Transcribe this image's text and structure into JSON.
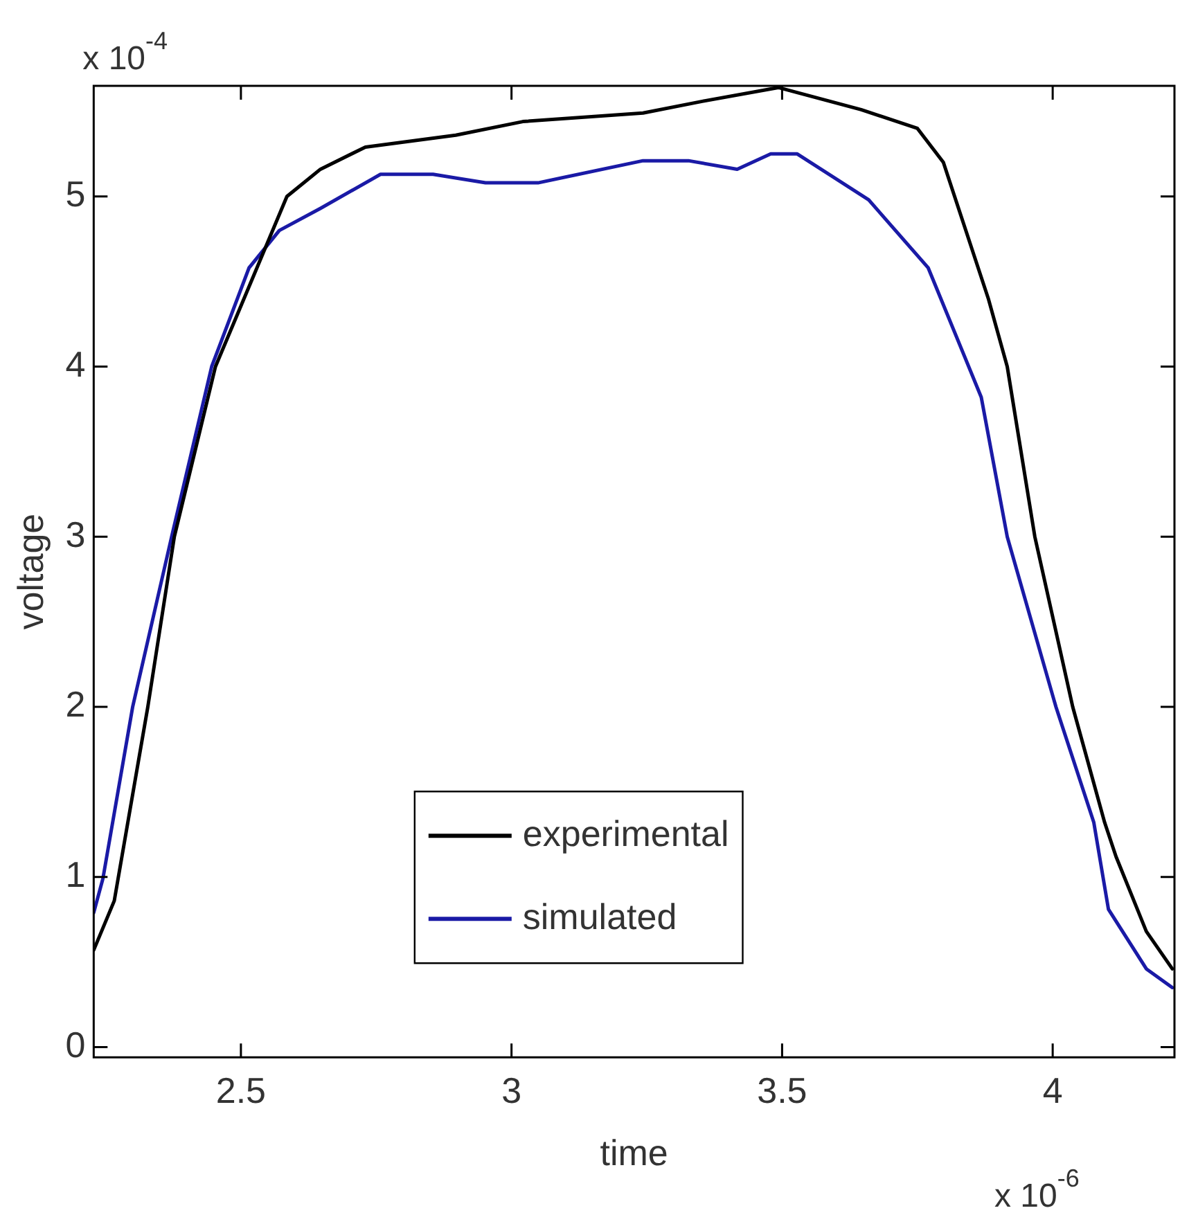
{
  "chart_data": {
    "type": "line",
    "xlabel": "time",
    "ylabel": "voltage",
    "xlim": [
      2.228,
      4.225
    ],
    "xticks": [
      {
        "value": 2.5,
        "label": "2.5"
      },
      3,
      {
        "value": 3.5,
        "label": "3.5"
      },
      4
    ],
    "ylim": [
      -0.06,
      5.65
    ],
    "yticks": [
      0,
      1,
      2,
      3,
      4,
      5
    ],
    "grid": false,
    "legend": "bottom",
    "marker": "none",
    "line_style": "solid",
    "annotations": [
      "x 10$^{-4}$",
      "x 10$^{-6}$"
    ],
    "series": [
      {
        "name": "experimental",
        "color": "#000000",
        "x": [
          2.228,
          2.266,
          2.328,
          2.377,
          2.453,
          2.585,
          2.647,
          2.73,
          2.897,
          3.021,
          3.243,
          3.354,
          3.493,
          3.646,
          3.75,
          3.798,
          3.881,
          3.916,
          3.967,
          4.037,
          4.096,
          4.117,
          4.173,
          4.221
        ],
        "values": [
          0.57,
          0.86,
          2,
          3,
          4,
          5,
          5.16,
          5.29,
          5.36,
          5.44,
          5.49,
          5.56,
          5.64,
          5.51,
          5.4,
          5.2,
          4.4,
          4,
          3,
          2,
          1.32,
          1.12,
          0.68,
          0.46
        ]
      },
      {
        "name": "simulated",
        "color": "#1a1aa6",
        "x": [
          2.228,
          2.245,
          2.3,
          2.372,
          2.446,
          2.515,
          2.571,
          2.647,
          2.758,
          2.855,
          2.952,
          3.049,
          3.243,
          3.327,
          3.417,
          3.479,
          3.528,
          3.66,
          3.77,
          3.868,
          3.916,
          4.006,
          4.076,
          4.103,
          4.173,
          4.221
        ],
        "values": [
          0.79,
          0.99,
          2,
          3,
          4,
          4.58,
          4.8,
          4.93,
          5.13,
          5.13,
          5.08,
          5.08,
          5.21,
          5.21,
          5.16,
          5.25,
          5.25,
          4.98,
          4.58,
          3.82,
          3,
          2,
          1.32,
          0.81,
          0.46,
          0.35
        ]
      }
    ]
  }
}
